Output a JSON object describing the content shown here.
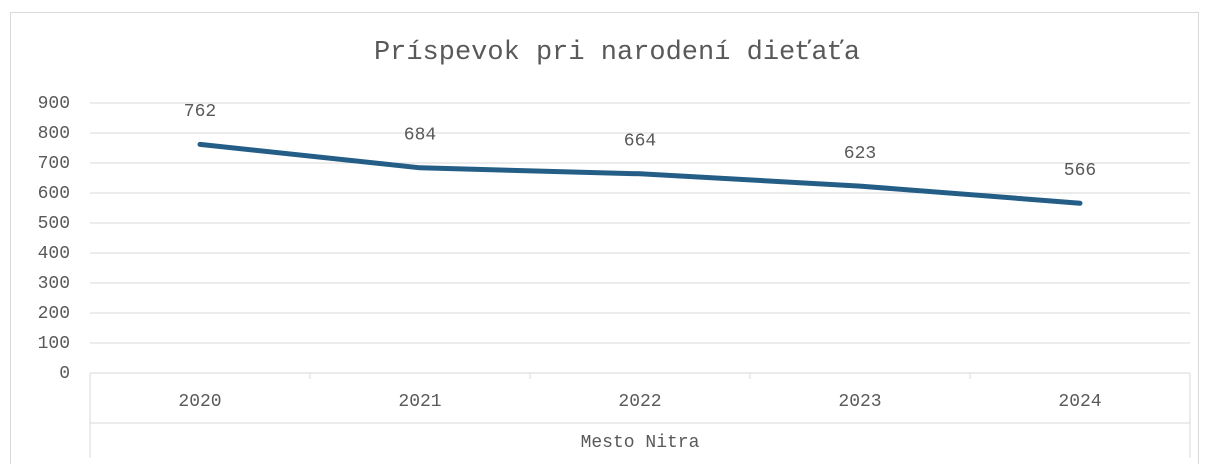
{
  "chart_data": {
    "type": "line",
    "title": "Príspevok pri narodení dieťaťa",
    "categories": [
      "2020",
      "2021",
      "2022",
      "2023",
      "2024"
    ],
    "category_group": "Mesto Nitra",
    "series": [
      {
        "name": "Príspevok pri narodení dieťaťa",
        "color": "#245d86",
        "values": [
          762,
          684,
          664,
          623,
          566
        ]
      }
    ],
    "ylim": [
      0,
      900
    ],
    "yticks": [
      0,
      100,
      200,
      300,
      400,
      500,
      600,
      700,
      800,
      900
    ],
    "grid": true,
    "data_labels": true
  }
}
